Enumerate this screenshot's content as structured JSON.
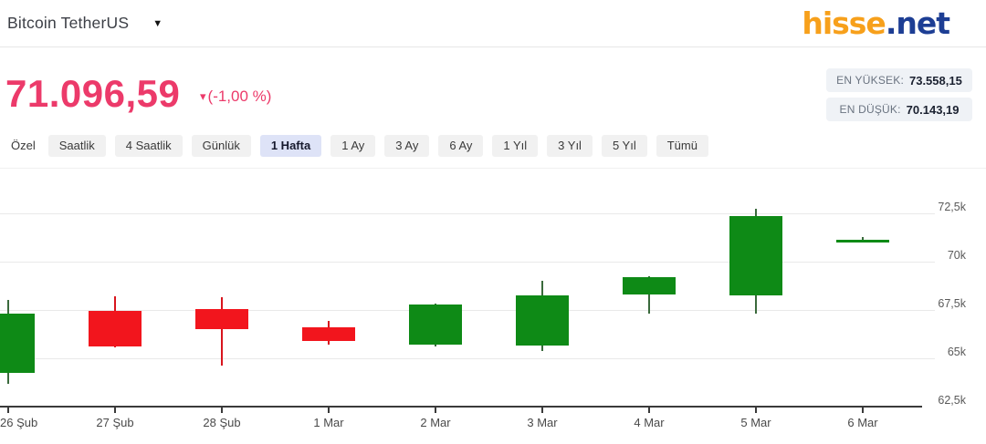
{
  "header": {
    "title": "Bitcoin TetherUS",
    "logo_part1": "hisse",
    "logo_part2": ".net",
    "logo_orange": "#F7A01B",
    "logo_blue": "#1D3E94"
  },
  "quote": {
    "price": "71.096,59",
    "change": "(-1,00 %)",
    "direction": "down",
    "accent_color": "#EC3A6A",
    "high_label": "EN YÜKSEK:",
    "high_value": "73.558,15",
    "low_label": "EN DÜŞÜK:",
    "low_value": "70.143,19"
  },
  "range_tabs": {
    "selected_bg": "#DEE3F7",
    "items": [
      {
        "label": "Özel",
        "selected": false,
        "plain": true
      },
      {
        "label": "Saatlik",
        "selected": false
      },
      {
        "label": "4 Saatlik",
        "selected": false
      },
      {
        "label": "Günlük",
        "selected": false
      },
      {
        "label": "1 Hafta",
        "selected": true
      },
      {
        "label": "1 Ay",
        "selected": false
      },
      {
        "label": "3 Ay",
        "selected": false
      },
      {
        "label": "6 Ay",
        "selected": false
      },
      {
        "label": "1 Yıl",
        "selected": false
      },
      {
        "label": "3 Yıl",
        "selected": false
      },
      {
        "label": "5 Yıl",
        "selected": false
      },
      {
        "label": "Tümü",
        "selected": false
      }
    ]
  },
  "chart_data": {
    "type": "candlestick",
    "categories": [
      "26 Şub",
      "27 Şub",
      "28 Şub",
      "1 Mar",
      "2 Mar",
      "3 Mar",
      "4 Mar",
      "5 Mar",
      "6 Mar"
    ],
    "candles": [
      {
        "date": "26 Şub",
        "open": 64250,
        "high": 68000,
        "low": 63700,
        "close": 67300
      },
      {
        "date": "27 Şub",
        "open": 67450,
        "high": 68200,
        "low": 65550,
        "close": 65620
      },
      {
        "date": "28 Şub",
        "open": 67550,
        "high": 68160,
        "low": 64620,
        "close": 66500
      },
      {
        "date": "1 Mar",
        "open": 66600,
        "high": 66930,
        "low": 65700,
        "close": 65900
      },
      {
        "date": "2 Mar",
        "open": 65700,
        "high": 67820,
        "low": 65620,
        "close": 67780
      },
      {
        "date": "3 Mar",
        "open": 65660,
        "high": 69000,
        "low": 65400,
        "close": 68250
      },
      {
        "date": "4 Mar",
        "open": 68300,
        "high": 69250,
        "low": 67300,
        "close": 69200
      },
      {
        "date": "5 Mar",
        "open": 68250,
        "high": 72730,
        "low": 67300,
        "close": 72350
      },
      {
        "date": "6 Mar",
        "open": 71000,
        "high": 71280,
        "low": 71000,
        "close": 71140
      }
    ],
    "y_axis": {
      "min": 62500,
      "max": 74500,
      "ticks": [
        {
          "value": 72500,
          "label": "72,5k"
        },
        {
          "value": 70000,
          "label": "70k"
        },
        {
          "value": 67500,
          "label": "67,5k"
        },
        {
          "value": 65000,
          "label": "65k"
        },
        {
          "value": 62500,
          "label": "62,5k"
        }
      ]
    },
    "grid": true,
    "legend": false,
    "colors": {
      "up": "#0E8A16",
      "down": "#F2151D",
      "up_wick": "#3A6A3C",
      "down_wick": "#D8151D",
      "grid": "#E9E9E9",
      "axis": "#3A3A3A"
    }
  }
}
